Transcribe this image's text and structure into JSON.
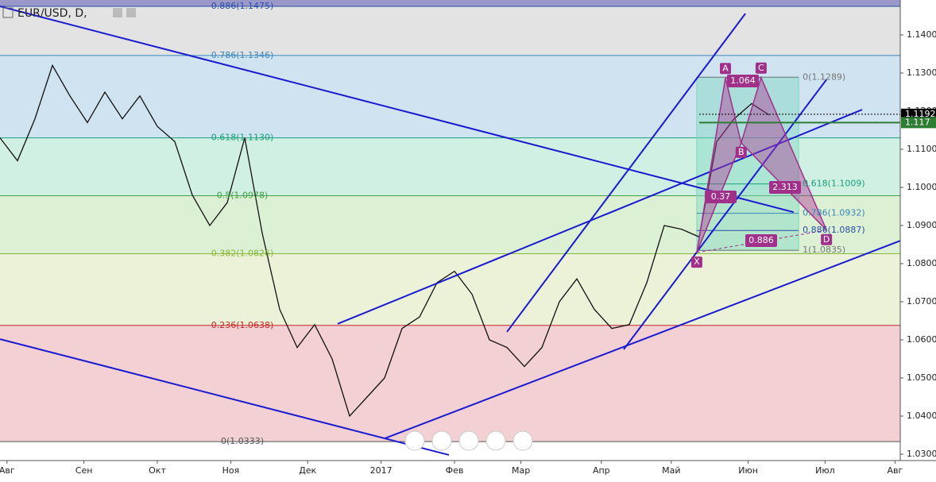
{
  "chart_data": {
    "type": "line",
    "title": "EUR/USD, D,",
    "xlim": [
      0,
      257.5
    ],
    "ylim": [
      1.02833,
      1.14917
    ],
    "xticks": [
      {
        "value": 2,
        "label": "Авг"
      },
      {
        "value": 24,
        "label": "Сен"
      },
      {
        "value": 45,
        "label": "Окт"
      },
      {
        "value": 66,
        "label": "Ноя"
      },
      {
        "value": 88,
        "label": "Дек"
      },
      {
        "value": 109,
        "label": "2017"
      },
      {
        "value": 130,
        "label": "Фев"
      },
      {
        "value": 149,
        "label": "Мар"
      },
      {
        "value": 172,
        "label": "Апр"
      },
      {
        "value": 192,
        "label": "Май"
      },
      {
        "value": 214,
        "label": "Июн"
      },
      {
        "value": 236,
        "label": "Июл"
      },
      {
        "value": 256,
        "label": "Авг"
      }
    ],
    "yticks": [
      {
        "value": 1.03,
        "label": "1.0300"
      },
      {
        "value": 1.04,
        "label": "1.0400"
      },
      {
        "value": 1.05,
        "label": "1.0500"
      },
      {
        "value": 1.06,
        "label": "1.0600"
      },
      {
        "value": 1.07,
        "label": "1.0700"
      },
      {
        "value": 1.08,
        "label": "1.0800"
      },
      {
        "value": 1.09,
        "label": "1.0900"
      },
      {
        "value": 1.1,
        "label": "1.1000"
      },
      {
        "value": 1.11,
        "label": "1.1100"
      },
      {
        "value": 1.12,
        "label": "1.1200"
      },
      {
        "value": 1.13,
        "label": "1.1300"
      },
      {
        "value": 1.14,
        "label": "1.1400"
      }
    ],
    "series": [
      {
        "name": "EUR/USD",
        "color": "#111111",
        "x": [
          0,
          5,
          10,
          15,
          20,
          25,
          30,
          35,
          40,
          45,
          50,
          55,
          60,
          65,
          70,
          75,
          80,
          85,
          90,
          95,
          100,
          105,
          110,
          115,
          120,
          125,
          130,
          135,
          140,
          145,
          150,
          155,
          160,
          165,
          170,
          175,
          180,
          185,
          190,
          195,
          200,
          205,
          210,
          215,
          220
        ],
        "values": [
          1.113,
          1.107,
          1.118,
          1.132,
          1.124,
          1.117,
          1.125,
          1.118,
          1.124,
          1.116,
          1.112,
          1.098,
          1.09,
          1.096,
          1.113,
          1.088,
          1.068,
          1.058,
          1.064,
          1.055,
          1.04,
          1.045,
          1.05,
          1.063,
          1.066,
          1.075,
          1.078,
          1.072,
          1.06,
          1.058,
          1.053,
          1.058,
          1.07,
          1.076,
          1.068,
          1.063,
          1.064,
          1.075,
          1.09,
          1.089,
          1.087,
          1.112,
          1.118,
          1.122,
          1.119
        ]
      }
    ],
    "price_labels": [
      {
        "value": 1.1192,
        "color": "#000000"
      },
      {
        "value": 1.117,
        "color": "#2e7d32"
      }
    ],
    "fib": [
      {
        "value": 1.1475,
        "label": "0.886(1.1475)",
        "color": "#2a4fa8",
        "fill": "#e3e3e3"
      },
      {
        "value": 1.1346,
        "label": "0.786(1.1346)",
        "color": "#3a86b8",
        "fill": "#cfe3f1"
      },
      {
        "value": 1.113,
        "label": "0.618(1.1130)",
        "color": "#1aa07a",
        "fill": "#cff0e3"
      },
      {
        "value": 1.0978,
        "label": "0.5(1.0978)",
        "color": "#43a047",
        "fill": "#dcf0d4"
      },
      {
        "value": 1.0826,
        "label": "0.382(1.0826)",
        "color": "#8bb83a",
        "fill": "#ebf2d8"
      },
      {
        "value": 1.0638,
        "label": "0.236(1.0638)",
        "color": "#c62828",
        "fill": "#f2d0d4"
      },
      {
        "value": 1.0333,
        "label": "0(1.0333)",
        "color": "#555555"
      }
    ],
    "trendlines": [
      [
        0,
        1.1475,
        227,
        1.0935
      ],
      [
        0,
        1.0602,
        128.4,
        1.0298
      ],
      [
        96.6,
        1.0642,
        246.6,
        1.1204
      ],
      [
        110.2,
        1.0342,
        257.5,
        1.086
      ],
      [
        145,
        1.0621,
        213.2,
        1.1456
      ],
      [
        178.4,
        1.0575,
        236.4,
        1.1283
      ]
    ],
    "pattern": {
      "points": [
        {
          "name": "X",
          "x": 199.3,
          "y": 1.0829
        },
        {
          "name": "A",
          "x": 207.5,
          "y": 1.1287
        },
        {
          "name": "B",
          "x": 212,
          "y": 1.1117
        },
        {
          "name": "C",
          "x": 217.7,
          "y": 1.1288
        },
        {
          "name": "D",
          "x": 236.4,
          "y": 1.0888
        }
      ],
      "ratios": [
        1.064,
        0.37,
        2.313,
        0.886
      ],
      "levels": [
        {
          "value": 1.1289,
          "label": "0(1.1289)",
          "color": "#777777"
        },
        {
          "value": 1.1009,
          "label": "0.618(1.1009)",
          "color": "#1aa07a"
        },
        {
          "value": 1.0932,
          "label": "0.786(1.0932)",
          "color": "#3a86b8"
        },
        {
          "value": 1.0887,
          "label": "0.886(1.0887)",
          "color": "#2a4fa8"
        },
        {
          "value": 1.0835,
          "label": "1(1.0835)",
          "color": "#777777"
        }
      ]
    }
  }
}
